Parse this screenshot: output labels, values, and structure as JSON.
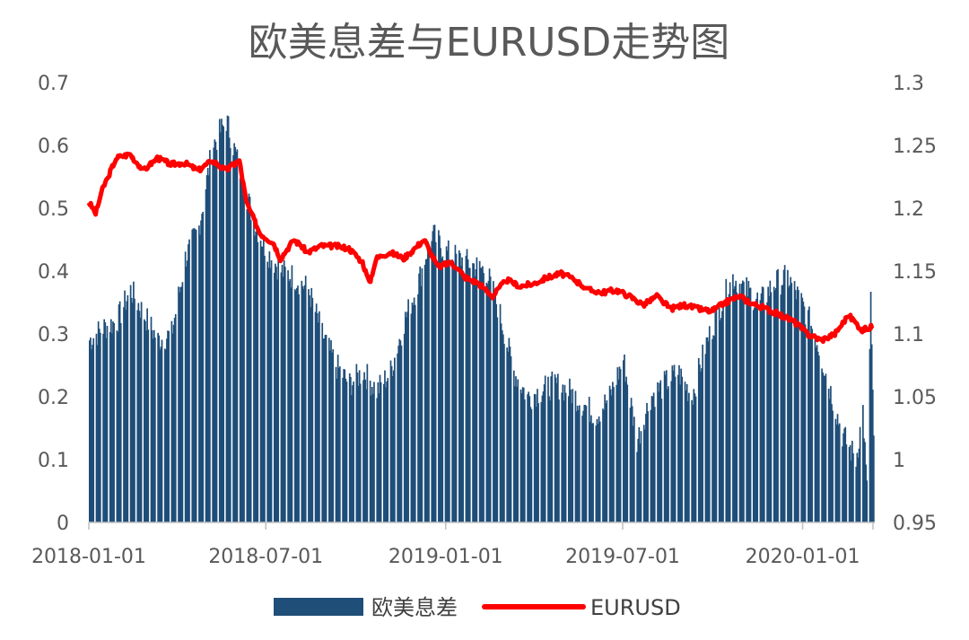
{
  "chart_data": {
    "type": "bar+line",
    "title": "欧美息差与EURUSD走势图",
    "x_ticks": [
      "2018-01-01",
      "2018-07-01",
      "2019-01-01",
      "2019-07-01",
      "2020-01-01"
    ],
    "x_range": [
      "2018-01-01",
      "2020-03-13"
    ],
    "y_left": {
      "ticks": [
        "0",
        "0.1",
        "0.2",
        "0.3",
        "0.4",
        "0.5",
        "0.6",
        "0.7"
      ],
      "ylim": [
        0,
        0.7
      ]
    },
    "y_right": {
      "ticks": [
        "0.95",
        "1",
        "1.05",
        "1.1",
        "1.15",
        "1.2",
        "1.25",
        "1.3"
      ],
      "ylim": [
        0.95,
        1.3
      ]
    },
    "grid": false,
    "legend_position": "bottom",
    "colors": {
      "spread": "#1f4e79",
      "eurusd": "#ff0000"
    },
    "series": [
      {
        "name": "欧美息差",
        "type": "bar",
        "axis": "left",
        "points": [
          [
            "2018-01-01",
            0.29
          ],
          [
            "2018-01-15",
            0.31
          ],
          [
            "2018-01-29",
            0.32
          ],
          [
            "2018-02-12",
            0.37
          ],
          [
            "2018-02-26",
            0.33
          ],
          [
            "2018-03-12",
            0.29
          ],
          [
            "2018-03-26",
            0.3
          ],
          [
            "2018-04-09",
            0.42
          ],
          [
            "2018-04-23",
            0.47
          ],
          [
            "2018-05-07",
            0.6
          ],
          [
            "2018-05-21",
            0.64
          ],
          [
            "2018-06-04",
            0.56
          ],
          [
            "2018-06-18",
            0.48
          ],
          [
            "2018-07-02",
            0.43
          ],
          [
            "2018-07-16",
            0.4
          ],
          [
            "2018-07-30",
            0.39
          ],
          [
            "2018-08-13",
            0.37
          ],
          [
            "2018-08-27",
            0.3
          ],
          [
            "2018-09-10",
            0.25
          ],
          [
            "2018-09-24",
            0.22
          ],
          [
            "2018-10-08",
            0.24
          ],
          [
            "2018-10-22",
            0.21
          ],
          [
            "2018-11-05",
            0.24
          ],
          [
            "2018-11-19",
            0.32
          ],
          [
            "2018-12-03",
            0.38
          ],
          [
            "2018-12-17",
            0.46
          ],
          [
            "2018-12-31",
            0.43
          ],
          [
            "2019-01-14",
            0.42
          ],
          [
            "2019-01-28",
            0.41
          ],
          [
            "2019-02-11",
            0.4
          ],
          [
            "2019-02-25",
            0.33
          ],
          [
            "2019-03-11",
            0.24
          ],
          [
            "2019-03-25",
            0.2
          ],
          [
            "2019-04-08",
            0.21
          ],
          [
            "2019-04-22",
            0.22
          ],
          [
            "2019-05-06",
            0.21
          ],
          [
            "2019-05-20",
            0.19
          ],
          [
            "2019-06-03",
            0.17
          ],
          [
            "2019-06-17",
            0.2
          ],
          [
            "2019-07-01",
            0.26
          ],
          [
            "2019-07-15",
            0.13
          ],
          [
            "2019-07-29",
            0.2
          ],
          [
            "2019-08-12",
            0.22
          ],
          [
            "2019-08-26",
            0.24
          ],
          [
            "2019-09-09",
            0.2
          ],
          [
            "2019-09-23",
            0.28
          ],
          [
            "2019-10-07",
            0.34
          ],
          [
            "2019-10-21",
            0.39
          ],
          [
            "2019-11-04",
            0.37
          ],
          [
            "2019-11-18",
            0.35
          ],
          [
            "2019-12-02",
            0.38
          ],
          [
            "2019-12-16",
            0.39
          ],
          [
            "2019-12-30",
            0.35
          ],
          [
            "2020-01-13",
            0.3
          ],
          [
            "2020-01-27",
            0.22
          ],
          [
            "2020-02-10",
            0.14
          ],
          [
            "2020-02-24",
            0.1
          ],
          [
            "2020-03-02",
            0.18
          ],
          [
            "2020-03-06",
            0.05
          ],
          [
            "2020-03-10",
            0.36
          ],
          [
            "2020-03-13",
            0.12
          ]
        ]
      },
      {
        "name": "EURUSD",
        "type": "line",
        "axis": "right",
        "points": [
          [
            "2018-01-01",
            1.205
          ],
          [
            "2018-01-08",
            1.196
          ],
          [
            "2018-01-15",
            1.215
          ],
          [
            "2018-01-29",
            1.24
          ],
          [
            "2018-02-12",
            1.243
          ],
          [
            "2018-02-26",
            1.23
          ],
          [
            "2018-03-12",
            1.24
          ],
          [
            "2018-03-26",
            1.235
          ],
          [
            "2018-04-09",
            1.236
          ],
          [
            "2018-04-23",
            1.23
          ],
          [
            "2018-05-07",
            1.238
          ],
          [
            "2018-05-21",
            1.23
          ],
          [
            "2018-06-04",
            1.238
          ],
          [
            "2018-06-11",
            1.205
          ],
          [
            "2018-06-25",
            1.18
          ],
          [
            "2018-07-09",
            1.172
          ],
          [
            "2018-07-16",
            1.16
          ],
          [
            "2018-07-30",
            1.175
          ],
          [
            "2018-08-13",
            1.165
          ],
          [
            "2018-08-27",
            1.17
          ],
          [
            "2018-09-10",
            1.17
          ],
          [
            "2018-09-24",
            1.168
          ],
          [
            "2018-10-08",
            1.157
          ],
          [
            "2018-10-15",
            1.14
          ],
          [
            "2018-10-22",
            1.16
          ],
          [
            "2018-11-05",
            1.165
          ],
          [
            "2018-11-19",
            1.16
          ],
          [
            "2018-12-03",
            1.17
          ],
          [
            "2018-12-10",
            1.175
          ],
          [
            "2018-12-24",
            1.153
          ],
          [
            "2019-01-07",
            1.157
          ],
          [
            "2019-01-21",
            1.145
          ],
          [
            "2019-02-04",
            1.14
          ],
          [
            "2019-02-18",
            1.13
          ],
          [
            "2019-03-04",
            1.143
          ],
          [
            "2019-03-18",
            1.138
          ],
          [
            "2019-04-01",
            1.14
          ],
          [
            "2019-04-15",
            1.145
          ],
          [
            "2019-04-29",
            1.148
          ],
          [
            "2019-05-13",
            1.143
          ],
          [
            "2019-05-27",
            1.135
          ],
          [
            "2019-06-10",
            1.133
          ],
          [
            "2019-06-24",
            1.135
          ],
          [
            "2019-07-08",
            1.13
          ],
          [
            "2019-07-22",
            1.123
          ],
          [
            "2019-08-05",
            1.13
          ],
          [
            "2019-08-19",
            1.12
          ],
          [
            "2019-09-02",
            1.123
          ],
          [
            "2019-09-16",
            1.12
          ],
          [
            "2019-09-30",
            1.118
          ],
          [
            "2019-10-14",
            1.125
          ],
          [
            "2019-10-28",
            1.13
          ],
          [
            "2019-11-11",
            1.124
          ],
          [
            "2019-11-25",
            1.12
          ],
          [
            "2019-12-09",
            1.115
          ],
          [
            "2019-12-23",
            1.11
          ],
          [
            "2020-01-06",
            1.1
          ],
          [
            "2020-01-20",
            1.095
          ],
          [
            "2020-02-03",
            1.1
          ],
          [
            "2020-02-17",
            1.115
          ],
          [
            "2020-03-02",
            1.103
          ],
          [
            "2020-03-13",
            1.106
          ]
        ]
      }
    ]
  }
}
